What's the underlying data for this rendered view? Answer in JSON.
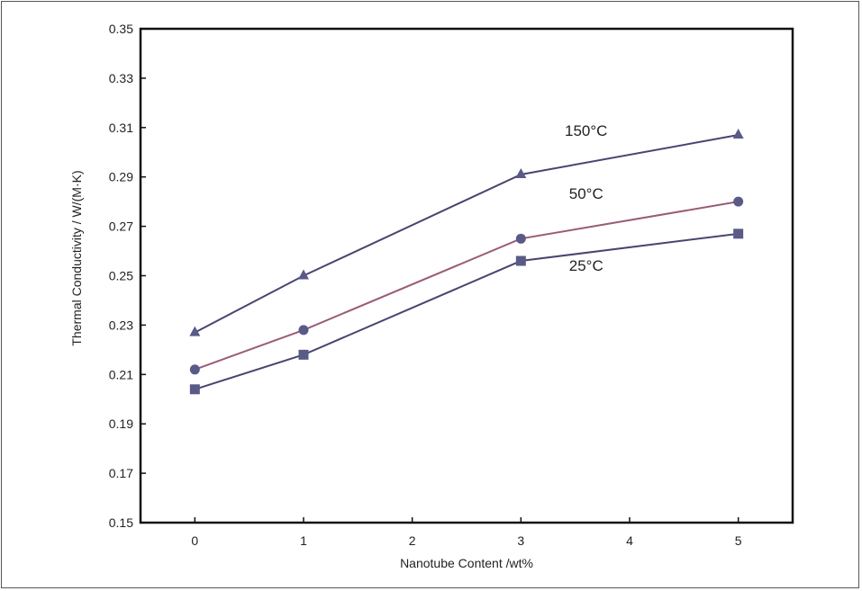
{
  "chart_data": {
    "type": "line",
    "xlabel": "Nanotube Content /wt%",
    "ylabel": "Thermal Conductivity / W/(M·K)",
    "xlim": [
      -0.5,
      5.5
    ],
    "ylim": [
      0.15,
      0.35
    ],
    "xticks": [
      0,
      1,
      2,
      3,
      4,
      5
    ],
    "yticks": [
      0.15,
      0.17,
      0.19,
      0.21,
      0.23,
      0.25,
      0.27,
      0.29,
      0.31,
      0.33,
      0.35
    ],
    "ytick_labels": [
      "0.15",
      "0.17",
      "0.19",
      "0.21",
      "0.23",
      "0.25",
      "0.27",
      "0.29",
      "0.31",
      "0.33",
      "0.35"
    ],
    "grid": false,
    "legend": "none",
    "series": [
      {
        "name": "150°C",
        "marker": "triangle",
        "color": "#5a5a88",
        "line_color": "#4a4470",
        "x": [
          0,
          1,
          3,
          5
        ],
        "values": [
          0.227,
          0.25,
          0.291,
          0.307
        ]
      },
      {
        "name": "50°C",
        "marker": "circle",
        "color": "#5a5a88",
        "line_color": "#9a5c78",
        "x": [
          0,
          1,
          3,
          5
        ],
        "values": [
          0.212,
          0.228,
          0.265,
          0.28
        ]
      },
      {
        "name": "25°C",
        "marker": "square",
        "color": "#5a5a88",
        "line_color": "#4a4470",
        "x": [
          0,
          1,
          3,
          5
        ],
        "values": [
          0.204,
          0.218,
          0.256,
          0.267
        ]
      }
    ]
  }
}
